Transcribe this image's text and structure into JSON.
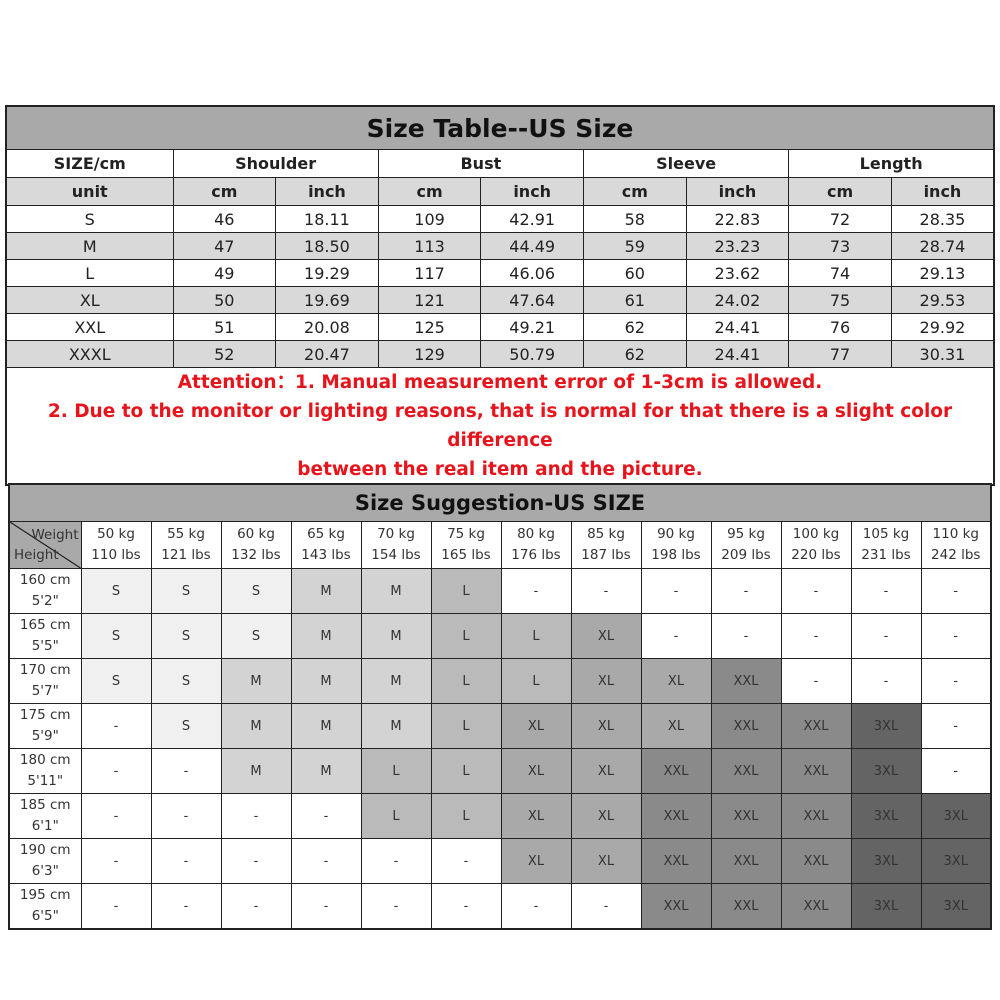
{
  "size_table": {
    "title": "Size Table--US Size",
    "header": [
      "SIZE/cm",
      "Shoulder",
      "Bust",
      "Sleeve",
      "Length"
    ],
    "units": [
      "unit",
      "cm",
      "inch",
      "cm",
      "inch",
      "cm",
      "inch",
      "cm",
      "inch"
    ],
    "rows": [
      [
        "S",
        "46",
        "18.11",
        "109",
        "42.91",
        "58",
        "22.83",
        "72",
        "28.35"
      ],
      [
        "M",
        "47",
        "18.50",
        "113",
        "44.49",
        "59",
        "23.23",
        "73",
        "28.74"
      ],
      [
        "L",
        "49",
        "19.29",
        "117",
        "46.06",
        "60",
        "23.62",
        "74",
        "29.13"
      ],
      [
        "XL",
        "50",
        "19.69",
        "121",
        "47.64",
        "61",
        "24.02",
        "75",
        "29.53"
      ],
      [
        "XXL",
        "51",
        "20.08",
        "125",
        "49.21",
        "62",
        "24.41",
        "76",
        "29.92"
      ],
      [
        "XXXL",
        "52",
        "20.47",
        "129",
        "50.79",
        "62",
        "24.41",
        "77",
        "30.31"
      ]
    ],
    "notes": [
      "Attention：1. Manual measurement error of 1-3cm is allowed.",
      "2. Due to the monitor or lighting reasons, that is normal for that there is a slight color difference",
      "between the real item and the picture."
    ]
  },
  "suggestion_table": {
    "title": "Size Suggestion-US SIZE",
    "corner_weight": "Weight",
    "corner_height": "Height",
    "weights": [
      [
        "50 kg",
        "110 lbs"
      ],
      [
        "55 kg",
        "121 lbs"
      ],
      [
        "60 kg",
        "132 lbs"
      ],
      [
        "65 kg",
        "143 lbs"
      ],
      [
        "70 kg",
        "154 lbs"
      ],
      [
        "75 kg",
        "165 lbs"
      ],
      [
        "80 kg",
        "176 lbs"
      ],
      [
        "85 kg",
        "187 lbs"
      ],
      [
        "90 kg",
        "198 lbs"
      ],
      [
        "95 kg",
        "209 lbs"
      ],
      [
        "100 kg",
        "220 lbs"
      ],
      [
        "105 kg",
        "231 lbs"
      ],
      [
        "110 kg",
        "242 lbs"
      ]
    ],
    "rows": [
      {
        "cm": "160 cm",
        "ft": "5'2\"",
        "sizes": [
          "S",
          "S",
          "S",
          "M",
          "M",
          "L",
          "-",
          "-",
          "-",
          "-",
          "-",
          "-",
          "-"
        ]
      },
      {
        "cm": "165 cm",
        "ft": "5'5\"",
        "sizes": [
          "S",
          "S",
          "S",
          "M",
          "M",
          "L",
          "L",
          "XL",
          "-",
          "-",
          "-",
          "-",
          "-"
        ]
      },
      {
        "cm": "170 cm",
        "ft": "5'7\"",
        "sizes": [
          "S",
          "S",
          "M",
          "M",
          "M",
          "L",
          "L",
          "XL",
          "XL",
          "XXL",
          "-",
          "-",
          "-"
        ]
      },
      {
        "cm": "175 cm",
        "ft": "5'9\"",
        "sizes": [
          "-",
          "S",
          "M",
          "M",
          "M",
          "L",
          "XL",
          "XL",
          "XL",
          "XXL",
          "XXL",
          "3XL",
          "-"
        ]
      },
      {
        "cm": "180 cm",
        "ft": "5'11\"",
        "sizes": [
          "-",
          "-",
          "M",
          "M",
          "L",
          "L",
          "XL",
          "XL",
          "XXL",
          "XXL",
          "XXL",
          "3XL",
          "-"
        ]
      },
      {
        "cm": "185 cm",
        "ft": "6'1\"",
        "sizes": [
          "-",
          "-",
          "-",
          "-",
          "L",
          "L",
          "XL",
          "XL",
          "XXL",
          "XXL",
          "XXL",
          "3XL",
          "3XL"
        ]
      },
      {
        "cm": "190 cm",
        "ft": "6'3\"",
        "sizes": [
          "-",
          "-",
          "-",
          "-",
          "-",
          "-",
          "XL",
          "XL",
          "XXL",
          "XXL",
          "XXL",
          "3XL",
          "3XL"
        ]
      },
      {
        "cm": "195 cm",
        "ft": "6'5\"",
        "sizes": [
          "-",
          "-",
          "-",
          "-",
          "-",
          "-",
          "-",
          "-",
          "XXL",
          "XXL",
          "XXL",
          "3XL",
          "3XL"
        ]
      }
    ],
    "size_colors": {
      "S": "#f0f0f0",
      "M": "#d3d3d3",
      "L": "#bababa",
      "XL": "#a9a9a9",
      "XXL": "#8a8a8a",
      "3XL": "#646464",
      "-": "#ffffff"
    }
  },
  "colors": {
    "title_bar": "#a9a9a9",
    "alt_row": "#d9d9d9",
    "attention_text": "#e8141c"
  }
}
